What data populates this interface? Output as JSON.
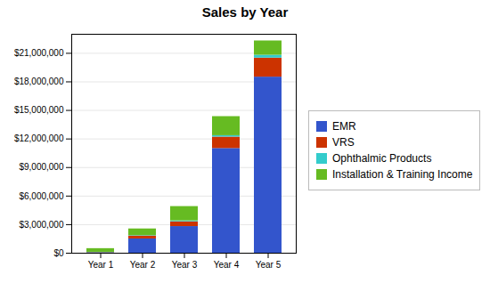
{
  "chart_data": {
    "type": "bar",
    "title": "Sales by Year",
    "categories": [
      "Year 1",
      "Year 2",
      "Year 3",
      "Year 4",
      "Year 5"
    ],
    "series": [
      {
        "name": "EMR",
        "color": "#3355cc",
        "values": [
          50000,
          1500000,
          2800000,
          11000000,
          18500000
        ]
      },
      {
        "name": "VRS",
        "color": "#cc3300",
        "values": [
          20000,
          300000,
          500000,
          1200000,
          2000000
        ]
      },
      {
        "name": "Ophthalmic Products",
        "color": "#33cccc",
        "values": [
          10000,
          50000,
          100000,
          150000,
          300000
        ]
      },
      {
        "name": "Installation & Training Income",
        "color": "#66bb22",
        "values": [
          400000,
          700000,
          1500000,
          2000000,
          1500000
        ]
      }
    ],
    "stacked": true,
    "ylim": [
      0,
      23000000
    ],
    "yticks": [
      {
        "value": 0,
        "label": "$0"
      },
      {
        "value": 3000000,
        "label": "$3,000,000"
      },
      {
        "value": 6000000,
        "label": "$6,000,000"
      },
      {
        "value": 9000000,
        "label": "$9,000,000"
      },
      {
        "value": 12000000,
        "label": "$12,000,000"
      },
      {
        "value": 15000000,
        "label": "$15,000,000"
      },
      {
        "value": 18000000,
        "label": "$18,000,000"
      },
      {
        "value": 21000000,
        "label": "$21,000,000"
      }
    ],
    "grid": true,
    "legend": "right"
  }
}
